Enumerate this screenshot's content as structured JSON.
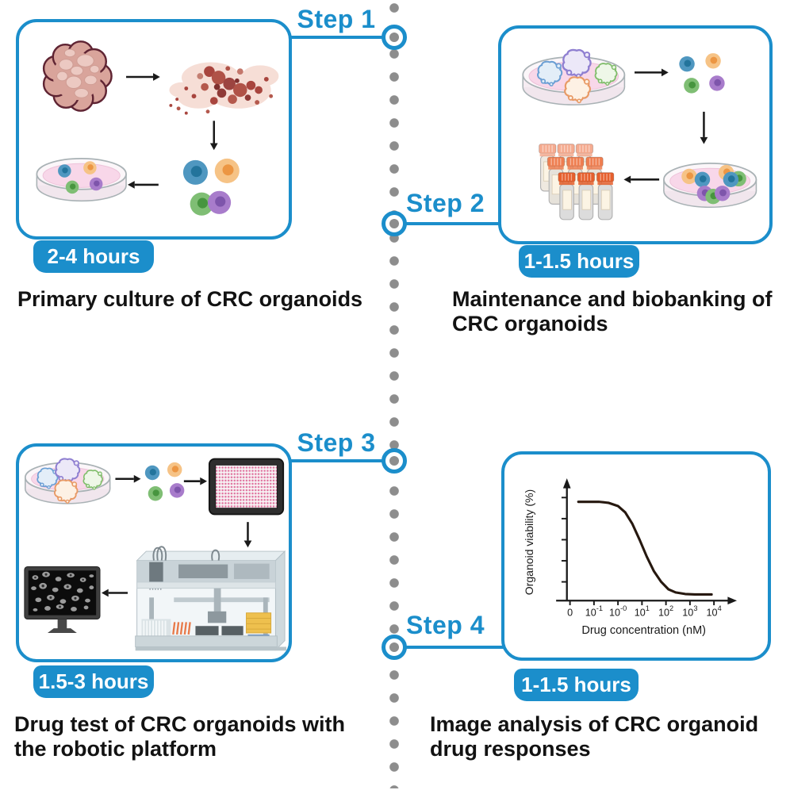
{
  "figure": {
    "colors": {
      "accent": "#1b8ecb",
      "dots": "#8d8d8d",
      "text": "#121212",
      "axis": "#1a1a1a",
      "curve": "#26180f"
    },
    "palette": {
      "blue": [
        "#4f97c0",
        "#23749c"
      ],
      "orange": [
        "#f6c386",
        "#ec9643"
      ],
      "green": [
        "#7fbe74",
        "#47953f"
      ],
      "purple": [
        "#a87ccb",
        "#7e55ab"
      ]
    },
    "organoid_palette": {
      "blue": [
        "#e3eef8",
        "#6b9fd4"
      ],
      "purple": [
        "#ece8f8",
        "#8f7fd1"
      ],
      "orange": [
        "#fdf1e4",
        "#e89a66"
      ],
      "green": [
        "#eef7e8",
        "#7fbd6a"
      ]
    },
    "steps": [
      {
        "label": "Step 1",
        "duration": "2-4 hours",
        "caption": "Primary culture of CRC organoids"
      },
      {
        "label": "Step 2",
        "duration": "1-1.5 hours",
        "caption": "Maintenance and biobanking of CRC organoids"
      },
      {
        "label": "Step 3",
        "duration": "1.5-3 hours",
        "caption": "Drug test of CRC organoids with the robotic platform"
      },
      {
        "label": "Step 4",
        "duration": "1-1.5 hours",
        "caption": "Image analysis of CRC organoid drug responses"
      }
    ]
  },
  "chart_data": {
    "type": "line",
    "title": "",
    "xlabel": "Drug concentration (nM)",
    "ylabel": "Organoid viability (%)",
    "x_tick_labels": [
      "0",
      "10^-1",
      "10^-0",
      "10^1",
      "10^2",
      "10^3",
      "10^4"
    ],
    "y_tick_values": [
      20,
      40,
      60,
      80,
      100
    ],
    "y_ticks_labeled": false,
    "ylim": [
      0,
      100
    ],
    "grid": false,
    "legend": "none",
    "series": [
      {
        "name": "dose-response",
        "shape": "decreasing-sigmoid",
        "points": [
          [
            0.35,
            96
          ],
          [
            0.8,
            96
          ],
          [
            1.2,
            96
          ],
          [
            1.6,
            95
          ],
          [
            2.0,
            92
          ],
          [
            2.3,
            86
          ],
          [
            2.6,
            75
          ],
          [
            2.9,
            60
          ],
          [
            3.2,
            44
          ],
          [
            3.5,
            30
          ],
          [
            3.8,
            20
          ],
          [
            4.1,
            13
          ],
          [
            4.4,
            10
          ],
          [
            4.8,
            8.5
          ],
          [
            5.2,
            8
          ],
          [
            5.9,
            8
          ]
        ]
      }
    ]
  }
}
